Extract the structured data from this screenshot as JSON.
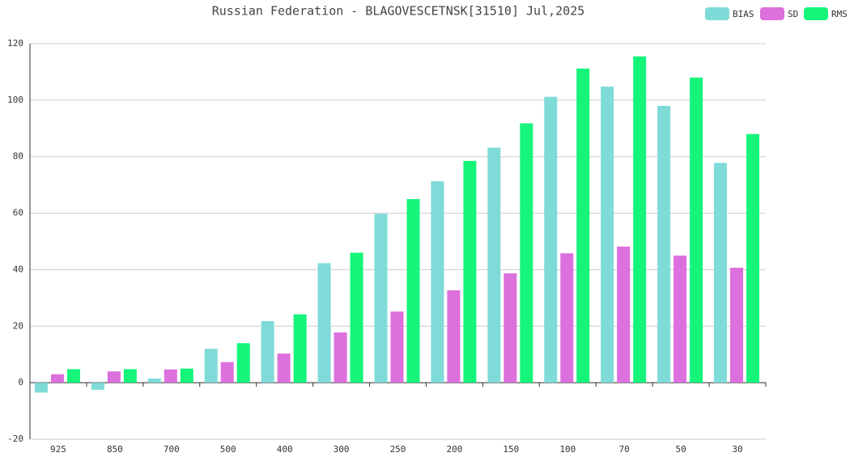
{
  "chart_data": {
    "type": "bar",
    "title": "Russian Federation - BLAGOVESCETNSK[31510] Jul,2025",
    "categories": [
      "925",
      "850",
      "700",
      "500",
      "400",
      "300",
      "250",
      "200",
      "150",
      "100",
      "70",
      "50",
      "30"
    ],
    "series": [
      {
        "name": "BIAS",
        "color": "#7fdbd8",
        "values": [
          -3.5,
          -2.5,
          1.5,
          12,
          21.8,
          42.3,
          59.8,
          71.3,
          83.2,
          101.2,
          104.8,
          98,
          77.8
        ]
      },
      {
        "name": "SD",
        "color": "#dc70dc",
        "values": [
          3,
          4,
          4.7,
          7.3,
          10.3,
          17.8,
          25.2,
          32.7,
          38.7,
          45.8,
          48.2,
          45,
          40.7
        ]
      },
      {
        "name": "RMS",
        "color": "#14f57a",
        "values": [
          4.8,
          4.8,
          5,
          14,
          24.2,
          46,
          65,
          78.5,
          91.8,
          111.2,
          115.5,
          108,
          88
        ]
      }
    ],
    "ylim": [
      -20,
      120
    ],
    "yticks": [
      -20,
      0,
      20,
      40,
      60,
      80,
      100,
      120
    ],
    "grid": true,
    "legend": "top-right"
  }
}
